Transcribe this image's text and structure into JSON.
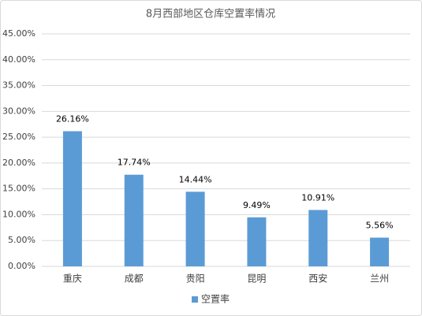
{
  "chart_data": {
    "type": "bar",
    "title": "8月西部地区仓库空置率情况",
    "categories": [
      "重庆",
      "成都",
      "贵阳",
      "昆明",
      "西安",
      "兰州"
    ],
    "series": [
      {
        "name": "空置率",
        "color": "#5b9bd5",
        "values": [
          26.16,
          17.74,
          14.44,
          9.49,
          10.91,
          5.56
        ],
        "value_labels": [
          "26.16%",
          "17.74%",
          "14.44%",
          "9.49%",
          "10.91%",
          "5.56%"
        ]
      }
    ],
    "ylim": [
      0,
      45
    ],
    "yticks": [
      {
        "value": 0,
        "label": "0.00%"
      },
      {
        "value": 5,
        "label": "5.00%"
      },
      {
        "value": 10,
        "label": "10.00%"
      },
      {
        "value": 15,
        "label": "15.00%"
      },
      {
        "value": 20,
        "label": "20.00%"
      },
      {
        "value": 25,
        "label": "25.00%"
      },
      {
        "value": 30,
        "label": "30.00%"
      },
      {
        "value": 35,
        "label": "35.00%"
      },
      {
        "value": 40,
        "label": "40.00%"
      },
      {
        "value": 45,
        "label": "45.00%"
      }
    ],
    "grid": true,
    "legend": "bottom"
  }
}
